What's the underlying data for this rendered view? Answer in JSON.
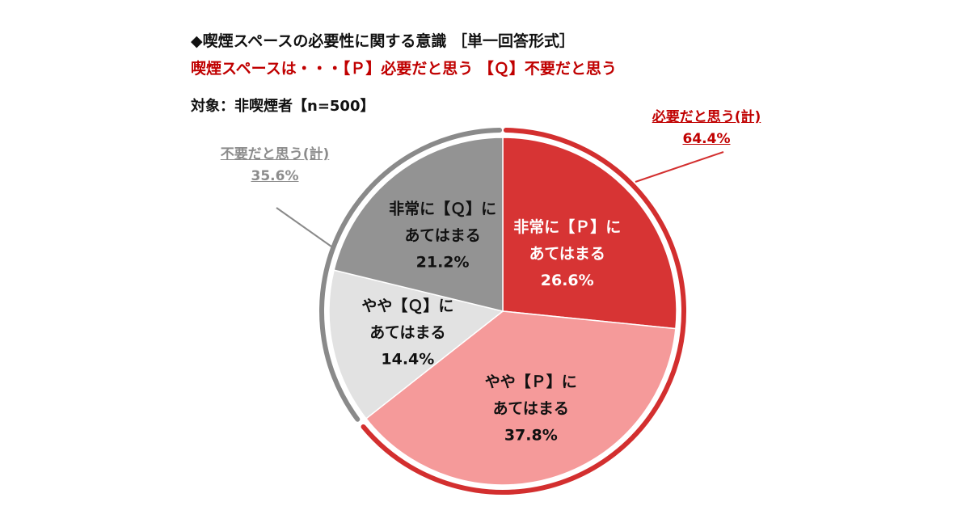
{
  "header": {
    "title": "◆喫煙スペースの必要性に関する意識 ［単一回答形式］",
    "subtitle": "喫煙スペースは・・・【Ｐ】必要だと思う 【Ｑ】不要だと思う",
    "target": "対象：非喫煙者【n=500】"
  },
  "callouts": {
    "left": {
      "label": "不要だと思う(計)",
      "value": "35.6%",
      "color": "#8c8c8c"
    },
    "right": {
      "label": "必要だと思う(計)",
      "value": "64.4%",
      "color": "#c00000"
    }
  },
  "chart_data": {
    "type": "pie",
    "start": "12 o'clock, clockwise",
    "slices": [
      {
        "lines": [
          "非常に【Ｐ】に",
          "あてはまる"
        ],
        "value": 26.6,
        "value_label": "26.6%",
        "color": "#d73434",
        "text_color": "#ffffff"
      },
      {
        "lines": [
          "やや【Ｐ】に",
          "あてはまる"
        ],
        "value": 37.8,
        "value_label": "37.8%",
        "color": "#f59a9a",
        "text_color": "#111111"
      },
      {
        "lines": [
          "やや【Ｑ】に",
          "あてはまる"
        ],
        "value": 14.4,
        "value_label": "14.4%",
        "color": "#e2e2e2",
        "text_color": "#111111"
      },
      {
        "lines": [
          "非常に【Ｑ】に",
          "あてはまる"
        ],
        "value": 21.2,
        "value_label": "21.2%",
        "color": "#939393",
        "text_color": "#111111"
      }
    ],
    "groups": [
      {
        "label": "必要だと思う(計)",
        "value": 64.4,
        "color": "#d32f2f"
      },
      {
        "label": "不要だと思う(計)",
        "value": 35.6,
        "color": "#8a8a8a"
      }
    ]
  }
}
